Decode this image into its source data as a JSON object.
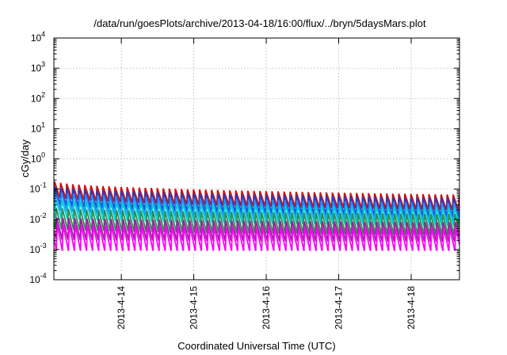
{
  "chart_data": {
    "type": "line",
    "title": "/data/run/goesPlots/archive/2013-04-18/16:00/flux/../bryn/5daysMars.plot",
    "xlabel": "Coordinated Universal Time (UTC)",
    "ylabel": "cGy/day",
    "yscale": "log",
    "ylim": [
      0.0001,
      10000
    ],
    "xlim": [
      "2013-04-13 01:40",
      "2013-04-18 16:00"
    ],
    "x_ticks": [
      "2013-04-14 00:00",
      "2013-04-15 00:00",
      "2013-04-16 00:00",
      "2013-04-17 00:00",
      "2013-04-18 00:00"
    ],
    "x_tick_labels": [
      "2013-4-14",
      "2013-4-15",
      "2013-4-16",
      "2013-4-17",
      "2013-4-18"
    ],
    "y_ticks": [
      {
        "base": "10",
        "exp": "-4"
      },
      {
        "base": "10",
        "exp": "-3"
      },
      {
        "base": "10",
        "exp": "-2"
      },
      {
        "base": "10",
        "exp": "-1"
      },
      {
        "base": "10",
        "exp": "0"
      },
      {
        "base": "10",
        "exp": "1"
      },
      {
        "base": "10",
        "exp": "2"
      },
      {
        "base": "10",
        "exp": "3"
      },
      {
        "base": "10",
        "exp": "4"
      }
    ],
    "grid": true,
    "legend": "none",
    "pattern": "sawtooth",
    "period_hours": 2,
    "series": [
      {
        "color": "#cc1111",
        "peak_start": 0.19,
        "peak_end": 0.065,
        "trough_start": 0.06,
        "trough_end": 0.02
      },
      {
        "color": "#1f3fcf",
        "peak_start": 0.13,
        "peak_end": 0.05,
        "trough_start": 0.035,
        "trough_end": 0.012
      },
      {
        "color": "#1e90ff",
        "peak_start": 0.09,
        "peak_end": 0.035,
        "trough_start": 0.022,
        "trough_end": 0.008
      },
      {
        "color": "#00d0d0",
        "peak_start": 0.05,
        "peak_end": 0.025,
        "trough_start": 0.012,
        "trough_end": 0.006
      },
      {
        "color": "#2e8b57",
        "peak_start": 0.025,
        "peak_end": 0.015,
        "trough_start": 0.005,
        "trough_end": 0.003
      },
      {
        "color": "#a020a0",
        "peak_start": 0.012,
        "peak_end": 0.008,
        "trough_start": 0.0022,
        "trough_end": 0.0018
      },
      {
        "color": "#ff00ff",
        "peak_start": 0.007,
        "peak_end": 0.005,
        "trough_start": 0.0009,
        "trough_end": 0.0009
      }
    ]
  }
}
